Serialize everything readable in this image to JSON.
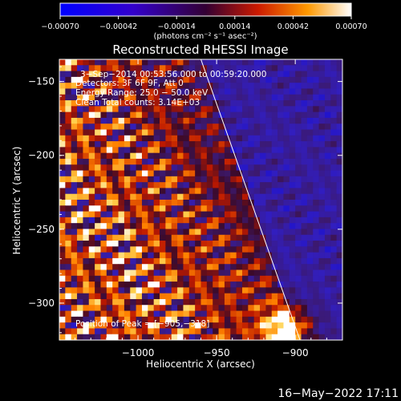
{
  "chart_data": {
    "type": "heatmap",
    "title": "Reconstructed RHESSI Image",
    "xlabel": "Heliocentric X (arcsec)",
    "ylabel": "Heliocentric Y (arcsec)",
    "xlim": [
      -1050,
      -870
    ],
    "ylim": [
      -325,
      -135
    ],
    "x_ticks": [
      -1000,
      -950,
      -900
    ],
    "x_tick_labels": [
      "−1000",
      "−950",
      "−900"
    ],
    "y_ticks": [
      -150,
      -200,
      -250,
      -300
    ],
    "y_tick_labels": [
      "−150",
      "−200",
      "−250",
      "−300"
    ],
    "colorbar": {
      "range": [
        -0.0007,
        0.0007
      ],
      "ticks": [
        -0.0007,
        -0.00042,
        -0.00014,
        0.00014,
        0.00042,
        0.0007
      ],
      "tick_labels": [
        "−0.00070",
        "−0.00042",
        "−0.00014",
        "0.00014",
        "0.00042",
        "0.00070"
      ],
      "unit_label": "(photons cm⁻² s⁻¹ asec⁻²)"
    },
    "annotations": [
      "3−Sep−2014 00:53:56.000 to 00:59:20.000",
      "Detectors: 3F 6F 9F, Att 0",
      "Energy Range: 25.0 − 50.0 keV",
      "Clean    Total counts: 3.14E+03"
    ],
    "peak_label": "Position of Peak = [−905,−318]",
    "peak_position": [
      -905,
      -318
    ],
    "limb_line": [
      [
        -960,
        -135
      ],
      [
        -897,
        -325
      ]
    ],
    "grid": false,
    "legend": "none"
  },
  "footer": {
    "timestamp": "16−May−2022 17:11"
  }
}
